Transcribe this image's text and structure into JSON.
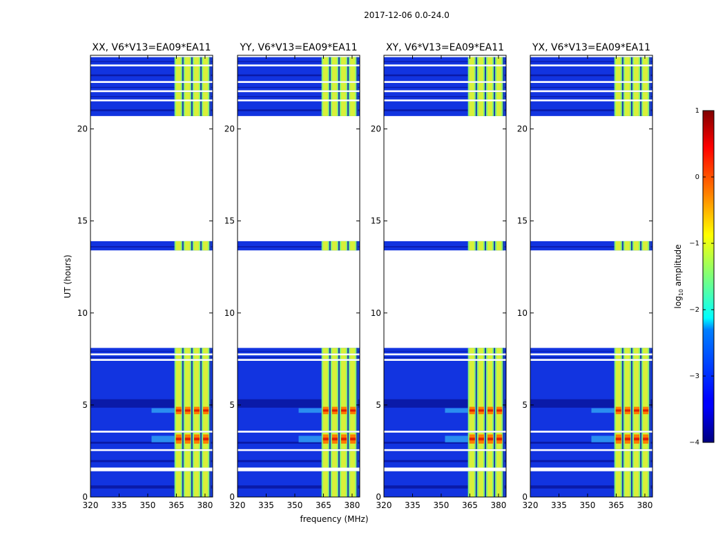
{
  "figure": {
    "suptitle": "2017-12-06 0.0-24.0",
    "xlabel": "frequency (MHz)",
    "ylabel": "UT (hours)",
    "colorbar_label_prefix": "log",
    "colorbar_label_sub": "10",
    "colorbar_label_suffix": " amplitude"
  },
  "chart_data": {
    "type": "heatmap",
    "title": "2017-12-06 0.0-24.0",
    "xlabel": "frequency (MHz)",
    "ylabel": "UT (hours)",
    "xlim": [
      320,
      384
    ],
    "ylim": [
      0,
      24
    ],
    "xticks": [
      320,
      335,
      350,
      365,
      380
    ],
    "yticks": [
      0,
      5,
      10,
      15,
      20
    ],
    "colorbar": {
      "label": "log10 amplitude",
      "min": -4,
      "max": 1,
      "ticks": [
        -4,
        -3,
        -2,
        -1,
        0,
        1
      ]
    },
    "panels": [
      {
        "title": "XX, V6*V13=EA09*EA11"
      },
      {
        "title": "YY, V6*V13=EA09*EA11"
      },
      {
        "title": "XY, V6*V13=EA09*EA11"
      },
      {
        "title": "YX, V6*V13=EA09*EA11"
      }
    ],
    "data_blocks_ut": [
      [
        0.0,
        1.4
      ],
      [
        1.6,
        2.5
      ],
      [
        2.6,
        3.5
      ],
      [
        3.6,
        7.4
      ],
      [
        7.5,
        7.7
      ],
      [
        7.8,
        8.1
      ],
      [
        13.4,
        13.9
      ],
      [
        20.7,
        21.5
      ],
      [
        21.6,
        22.0
      ],
      [
        22.1,
        22.5
      ],
      [
        22.6,
        23.4
      ],
      [
        23.5,
        23.9
      ]
    ],
    "rfi_band_mhz": [
      364,
      383
    ],
    "bright_ut_ranges": [
      [
        2.9,
        3.4
      ],
      [
        4.5,
        4.9
      ]
    ]
  }
}
